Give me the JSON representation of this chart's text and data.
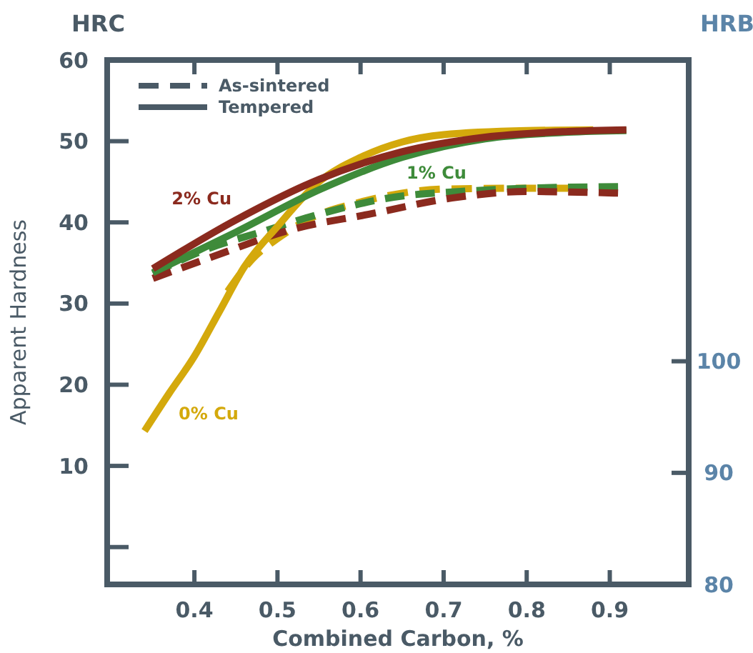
{
  "chart_data": {
    "type": "line",
    "xlabel": "Combined Carbon, %",
    "ylabel": "Apparent Hardness",
    "y2label": "HRB",
    "annotations": [
      "HRC",
      "As-sintered",
      "Tempered"
    ],
    "xlim": [
      0.295,
      0.995
    ],
    "xticks": [
      0.4,
      0.5,
      0.6,
      0.7,
      0.8,
      0.9
    ],
    "ylim": [
      -4.6,
      60
    ],
    "yticks": [
      {
        "value": 0,
        "label": null
      },
      10,
      20,
      30,
      40,
      50,
      60
    ],
    "y2lim": [
      80,
      127
    ],
    "y2ticks": [
      80,
      90,
      100
    ],
    "legend": "top left",
    "grid": false,
    "marker": "none",
    "series": [
      {
        "color": "#d4a90c",
        "line_style": "dashed",
        "x": [
          0.44,
          0.47,
          0.5,
          0.54,
          0.6,
          0.65,
          0.7,
          0.8,
          0.85
        ],
        "values": [
          31.5,
          35.5,
          38,
          40.5,
          42.5,
          43.6,
          44.1,
          44.2,
          44.2
        ]
      },
      {
        "color": "#3e8b3a",
        "line_style": "dashed",
        "x": [
          0.35,
          0.42,
          0.48,
          0.55,
          0.64,
          0.72,
          0.8,
          0.91
        ],
        "values": [
          33.7,
          36.9,
          38.8,
          41,
          43.1,
          43.8,
          44.2,
          44.4
        ]
      },
      {
        "color": "#8b2a1e",
        "line_style": "dashed",
        "x": [
          0.35,
          0.42,
          0.52,
          0.61,
          0.71,
          0.8,
          0.91
        ],
        "values": [
          33.1,
          35.7,
          39.2,
          41,
          43,
          43.8,
          43.6
        ]
      },
      {
        "name": "0% Cu",
        "color": "#d4a90c",
        "line_style": "solid",
        "x": [
          0.34,
          0.37,
          0.4,
          0.43,
          0.46,
          0.5,
          0.55,
          0.6,
          0.65,
          0.7,
          0.8,
          0.88
        ],
        "values": [
          14.3,
          19,
          23.5,
          29,
          34.5,
          39.5,
          45,
          48,
          49.9,
          50.8,
          51.3,
          51.4
        ]
      },
      {
        "name": "1% Cu",
        "color": "#3e8b3a",
        "line_style": "solid",
        "x": [
          0.35,
          0.45,
          0.55,
          0.65,
          0.75,
          0.85,
          0.92
        ],
        "values": [
          33.8,
          38.8,
          44,
          48,
          50.3,
          51.1,
          51.3
        ]
      },
      {
        "name": "2% Cu",
        "color": "#8b2a1e",
        "line_style": "solid",
        "x": [
          0.35,
          0.45,
          0.55,
          0.65,
          0.75,
          0.85,
          0.92
        ],
        "values": [
          34.3,
          40.3,
          45.3,
          48.7,
          50.5,
          51.2,
          51.4
        ]
      }
    ]
  }
}
